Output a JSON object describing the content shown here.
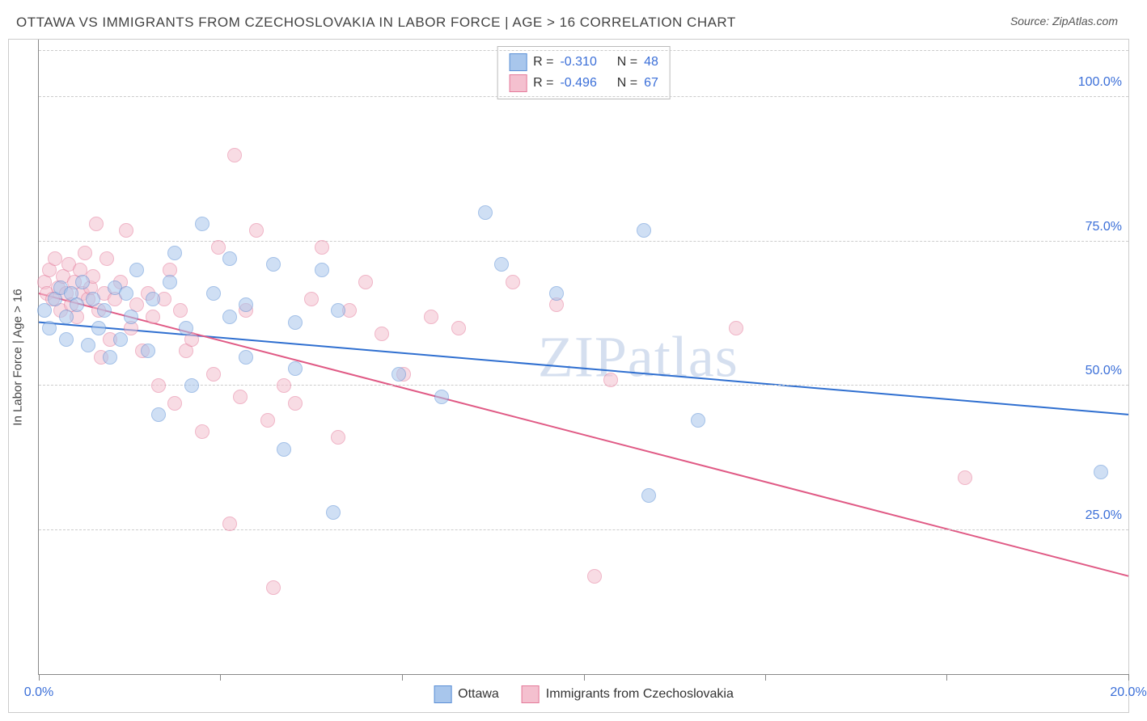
{
  "title": "OTTAWA VS IMMIGRANTS FROM CZECHOSLOVAKIA IN LABOR FORCE | AGE > 16 CORRELATION CHART",
  "source": "Source: ZipAtlas.com",
  "y_axis_title": "In Labor Force | Age > 16",
  "watermark_a": "ZIP",
  "watermark_b": "atlas",
  "chart": {
    "type": "scatter",
    "x_min": 0.0,
    "x_max": 20.0,
    "y_min": 0.0,
    "y_max": 110.0,
    "y_ticks": [
      25.0,
      50.0,
      75.0,
      100.0
    ],
    "y_tick_labels": [
      "25.0%",
      "50.0%",
      "75.0%",
      "100.0%"
    ],
    "x_tick_positions": [
      0.0,
      3.33,
      6.66,
      10.0,
      13.33,
      16.66,
      20.0
    ],
    "x_tick_labels": {
      "0": "0.0%",
      "20": "20.0%"
    },
    "grid_color": "#cccccc",
    "axis_color": "#888888",
    "label_color": "#3b6fd8",
    "marker_radius": 9,
    "marker_opacity": 0.55,
    "series": [
      {
        "name": "Ottawa",
        "fill": "#a8c6ec",
        "stroke": "#5b8fd6",
        "R": "-0.310",
        "N": "48",
        "trend": {
          "x1": 0.0,
          "y1": 61.0,
          "x2": 20.0,
          "y2": 45.0,
          "color": "#2f6fd0",
          "width": 2
        },
        "points": [
          [
            0.1,
            63
          ],
          [
            0.2,
            60
          ],
          [
            0.3,
            65
          ],
          [
            0.4,
            67
          ],
          [
            0.5,
            62
          ],
          [
            0.5,
            58
          ],
          [
            0.6,
            66
          ],
          [
            0.7,
            64
          ],
          [
            0.8,
            68
          ],
          [
            0.9,
            57
          ],
          [
            1.0,
            65
          ],
          [
            1.1,
            60
          ],
          [
            1.2,
            63
          ],
          [
            1.3,
            55
          ],
          [
            1.4,
            67
          ],
          [
            1.5,
            58
          ],
          [
            1.6,
            66
          ],
          [
            1.7,
            62
          ],
          [
            1.8,
            70
          ],
          [
            2.0,
            56
          ],
          [
            2.1,
            65
          ],
          [
            2.2,
            45
          ],
          [
            2.4,
            68
          ],
          [
            2.5,
            73
          ],
          [
            2.7,
            60
          ],
          [
            2.8,
            50
          ],
          [
            3.0,
            78
          ],
          [
            3.2,
            66
          ],
          [
            3.5,
            62
          ],
          [
            3.5,
            72
          ],
          [
            3.8,
            64
          ],
          [
            3.8,
            55
          ],
          [
            4.3,
            71
          ],
          [
            4.5,
            39
          ],
          [
            4.7,
            61
          ],
          [
            4.7,
            53
          ],
          [
            5.2,
            70
          ],
          [
            5.4,
            28
          ],
          [
            5.5,
            63
          ],
          [
            6.6,
            52
          ],
          [
            7.4,
            48
          ],
          [
            8.2,
            80
          ],
          [
            8.5,
            71
          ],
          [
            9.5,
            66
          ],
          [
            11.1,
            77
          ],
          [
            11.2,
            31
          ],
          [
            12.1,
            44
          ],
          [
            19.5,
            35
          ]
        ]
      },
      {
        "name": "Immigrants from Czechoslovakia",
        "fill": "#f4c0cf",
        "stroke": "#e47a9a",
        "R": "-0.496",
        "N": "67",
        "trend": {
          "x1": 0.0,
          "y1": 66.0,
          "x2": 20.0,
          "y2": 17.0,
          "color": "#e05a85",
          "width": 2
        },
        "points": [
          [
            0.1,
            68
          ],
          [
            0.15,
            66
          ],
          [
            0.2,
            70
          ],
          [
            0.25,
            65
          ],
          [
            0.3,
            72
          ],
          [
            0.35,
            67
          ],
          [
            0.4,
            63
          ],
          [
            0.45,
            69
          ],
          [
            0.5,
            66
          ],
          [
            0.55,
            71
          ],
          [
            0.6,
            64
          ],
          [
            0.65,
            68
          ],
          [
            0.7,
            62
          ],
          [
            0.75,
            70
          ],
          [
            0.8,
            66
          ],
          [
            0.85,
            73
          ],
          [
            0.9,
            65
          ],
          [
            0.95,
            67
          ],
          [
            1.0,
            69
          ],
          [
            1.05,
            78
          ],
          [
            1.1,
            63
          ],
          [
            1.15,
            55
          ],
          [
            1.2,
            66
          ],
          [
            1.25,
            72
          ],
          [
            1.3,
            58
          ],
          [
            1.4,
            65
          ],
          [
            1.5,
            68
          ],
          [
            1.6,
            77
          ],
          [
            1.7,
            60
          ],
          [
            1.8,
            64
          ],
          [
            1.9,
            56
          ],
          [
            2.0,
            66
          ],
          [
            2.1,
            62
          ],
          [
            2.2,
            50
          ],
          [
            2.3,
            65
          ],
          [
            2.4,
            70
          ],
          [
            2.5,
            47
          ],
          [
            2.6,
            63
          ],
          [
            2.7,
            56
          ],
          [
            2.8,
            58
          ],
          [
            3.0,
            42
          ],
          [
            3.2,
            52
          ],
          [
            3.3,
            74
          ],
          [
            3.5,
            26
          ],
          [
            3.6,
            90
          ],
          [
            3.7,
            48
          ],
          [
            3.8,
            63
          ],
          [
            4.0,
            77
          ],
          [
            4.2,
            44
          ],
          [
            4.3,
            15
          ],
          [
            4.5,
            50
          ],
          [
            4.7,
            47
          ],
          [
            5.0,
            65
          ],
          [
            5.2,
            74
          ],
          [
            5.5,
            41
          ],
          [
            5.7,
            63
          ],
          [
            6.0,
            68
          ],
          [
            6.3,
            59
          ],
          [
            6.7,
            52
          ],
          [
            7.2,
            62
          ],
          [
            7.7,
            60
          ],
          [
            8.7,
            68
          ],
          [
            9.5,
            64
          ],
          [
            10.2,
            17
          ],
          [
            10.5,
            51
          ],
          [
            12.8,
            60
          ],
          [
            17.0,
            34
          ]
        ]
      }
    ]
  },
  "stats_labels": {
    "R": "R =",
    "N": "N ="
  },
  "legend": [
    {
      "label": "Ottawa",
      "fill": "#a8c6ec",
      "stroke": "#5b8fd6"
    },
    {
      "label": "Immigrants from Czechoslovakia",
      "fill": "#f4c0cf",
      "stroke": "#e47a9a"
    }
  ]
}
